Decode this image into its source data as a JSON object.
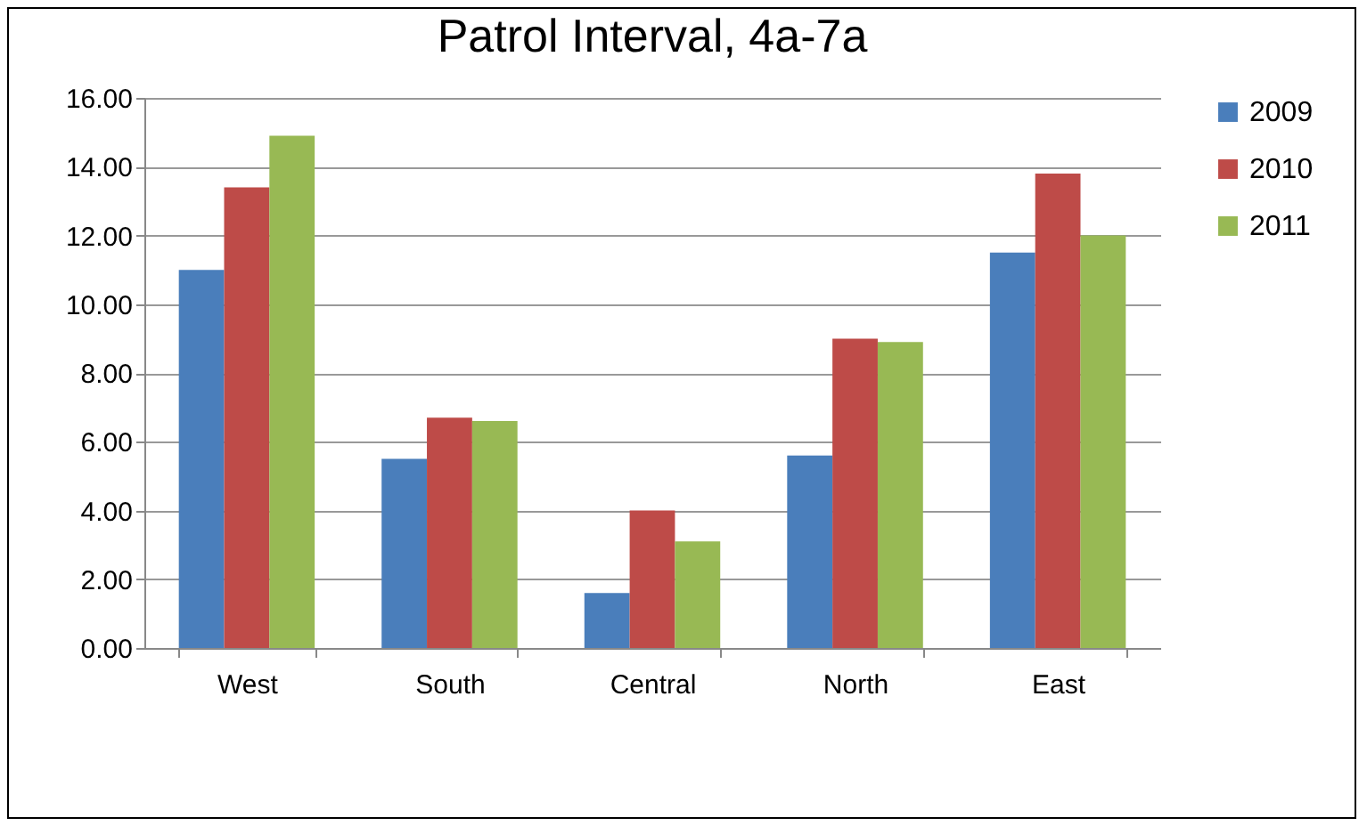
{
  "chart_data": {
    "type": "bar",
    "title": "Patrol Interval, 4a-7a",
    "categories": [
      "West",
      "South",
      "Central",
      "North",
      "East"
    ],
    "series": [
      {
        "name": "2009",
        "color": "#4a7ebb",
        "values": [
          11.0,
          5.5,
          1.6,
          5.6,
          11.5
        ]
      },
      {
        "name": "2010",
        "color": "#be4b48",
        "values": [
          13.4,
          6.7,
          4.0,
          9.0,
          13.8
        ]
      },
      {
        "name": "2011",
        "color": "#98b954",
        "values": [
          14.9,
          6.6,
          3.1,
          8.9,
          12.0
        ]
      }
    ],
    "ylim": [
      0,
      16
    ],
    "yticks": [
      {
        "value": 0,
        "label": "0.00"
      },
      {
        "value": 2,
        "label": "2.00"
      },
      {
        "value": 4,
        "label": "4.00"
      },
      {
        "value": 6,
        "label": "6.00"
      },
      {
        "value": 8,
        "label": "8.00"
      },
      {
        "value": 10,
        "label": "10.00"
      },
      {
        "value": 12,
        "label": "12.00"
      },
      {
        "value": 14,
        "label": "14.00"
      },
      {
        "value": 16,
        "label": "16.00"
      }
    ],
    "grid": "y",
    "legend": "right"
  }
}
